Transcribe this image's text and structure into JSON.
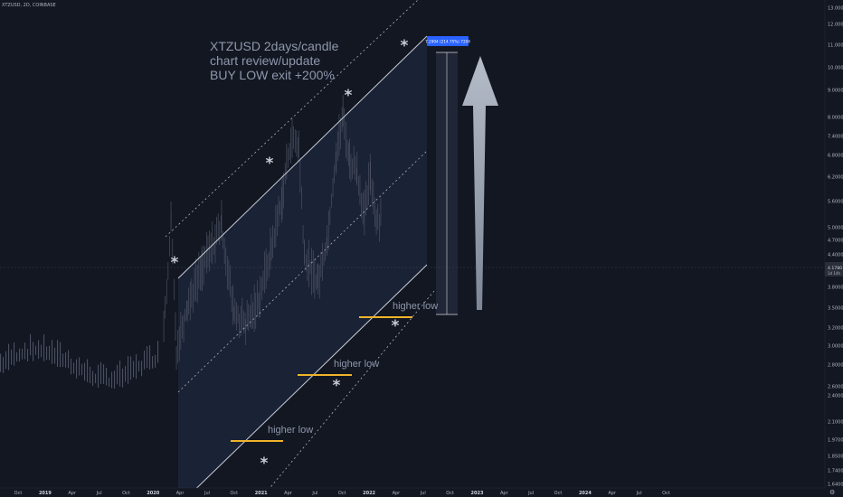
{
  "header": {
    "symbol_line": "XTZUSD, 2D, COINBASE"
  },
  "annotations": {
    "title_lines": [
      "XTZUSD 2days/candle",
      "chart review/update",
      "BUY LOW exit +200%"
    ],
    "higher_low_labels": [
      "higher low",
      "higher low",
      "higher low"
    ],
    "measure_label": "7.2904 (214.75%) 7204",
    "current_price_label": "4.1780",
    "current_price_sub": "1d 14h"
  },
  "colors": {
    "background": "#131722",
    "channel_line": "#c8ccd6",
    "channel_fill": "#1a2235",
    "support_marker": "#f0b429",
    "measure_box": "#2962ff",
    "arrow": "#9aa3b0",
    "candles": "#4a5061"
  },
  "chart_data": {
    "type": "candlestick",
    "symbol": "XTZUSD",
    "interval": "2D",
    "exchange": "COINBASE",
    "y_scale": "log",
    "grid": false,
    "x_ticks": [
      "Oct",
      "2019",
      "Apr",
      "Jul",
      "Oct",
      "2020",
      "Apr",
      "Jul",
      "Oct",
      "2021",
      "Apr",
      "Jul",
      "Oct",
      "2022",
      "Apr",
      "Jul",
      "Oct",
      "2023",
      "Apr",
      "Jul",
      "Oct",
      "2024",
      "Apr",
      "Jul",
      "Oct"
    ],
    "y_ticks": [
      "13.0000",
      "12.0000",
      "11.0000",
      "10.0000",
      "9.0000",
      "8.0000",
      "7.4000",
      "6.8000",
      "6.2000",
      "5.6000",
      "5.0000",
      "4.7000",
      "4.4000",
      "3.8000",
      "3.5000",
      "3.2000",
      "3.0000",
      "2.8000",
      "2.6000",
      "2.4000",
      "2.1000",
      "1.9700",
      "1.8500",
      "1.7400",
      "1.6400"
    ],
    "price_path": [
      {
        "x": "2020-01-31",
        "y": 1.8
      },
      {
        "x": "2020-02-25",
        "y": 4.0
      },
      {
        "x": "2020-03-14",
        "y": 1.6
      },
      {
        "x": "2020-04-20",
        "y": 2.2
      },
      {
        "x": "2020-06-10",
        "y": 2.9
      },
      {
        "x": "2020-08-15",
        "y": 3.9
      },
      {
        "x": "2020-09-25",
        "y": 2.1
      },
      {
        "x": "2020-11-05",
        "y": 1.9
      },
      {
        "x": "2020-12-20",
        "y": 2.3
      },
      {
        "x": "2021-02-01",
        "y": 3.3
      },
      {
        "x": "2021-03-10",
        "y": 4.8
      },
      {
        "x": "2021-04-08",
        "y": 7.2
      },
      {
        "x": "2021-05-05",
        "y": 6.8
      },
      {
        "x": "2021-05-25",
        "y": 3.1
      },
      {
        "x": "2021-07-10",
        "y": 2.6
      },
      {
        "x": "2021-08-10",
        "y": 3.5
      },
      {
        "x": "2021-09-10",
        "y": 6.5
      },
      {
        "x": "2021-10-03",
        "y": 8.5
      },
      {
        "x": "2021-10-25",
        "y": 6.2
      },
      {
        "x": "2021-11-20",
        "y": 5.7
      },
      {
        "x": "2021-12-15",
        "y": 4.2
      },
      {
        "x": "2022-01-05",
        "y": 5.6
      },
      {
        "x": "2022-01-25",
        "y": 4.0
      },
      {
        "x": "2022-02-10",
        "y": 4.18
      }
    ],
    "higher_lows": [
      {
        "label": "higher low",
        "x_start": "2020-10-01",
        "x_end": "2020-12-30",
        "y": 1.93
      },
      {
        "label": "higher low",
        "x_start": "2021-06-15",
        "x_end": "2021-09-20",
        "y": 2.68
      },
      {
        "label": "higher low",
        "x_start": "2021-12-20",
        "x_end": "2022-03-15",
        "y": 3.45
      }
    ],
    "measure": {
      "label": "7.2904 (214.75%) 7204",
      "y_start": 3.45,
      "y_end": 10.7
    },
    "current_price": 4.178
  }
}
